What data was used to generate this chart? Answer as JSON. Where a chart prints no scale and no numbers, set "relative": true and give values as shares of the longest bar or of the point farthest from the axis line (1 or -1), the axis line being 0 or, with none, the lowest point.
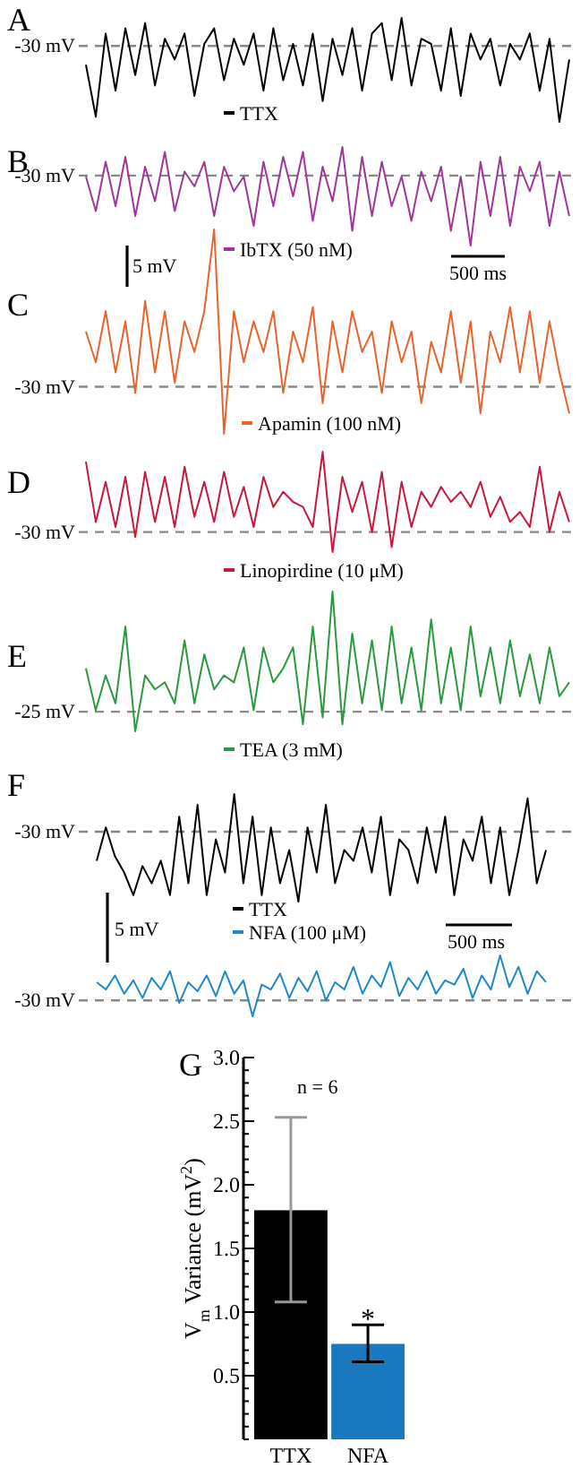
{
  "chart_data": [
    {
      "type": "line",
      "title": "A",
      "relative": true,
      "legend": "bottom",
      "line_style": "solid",
      "categories": [
        null,
        null,
        null,
        null,
        null,
        null,
        null,
        null,
        null,
        null,
        null,
        null,
        null,
        null,
        null,
        null,
        null,
        null,
        null,
        null,
        null,
        null,
        null,
        null,
        null,
        null,
        null,
        null,
        null,
        null,
        null,
        null,
        null,
        null,
        null,
        null,
        null,
        null,
        null,
        null,
        null,
        null,
        null,
        null,
        null,
        null,
        null,
        null,
        null,
        null
      ],
      "series": [
        {
          "name": "TTX",
          "color": "#000000",
          "values": [
            0.55,
            0.05,
            0.85,
            0.3,
            0.9,
            0.45,
            0.95,
            0.35,
            0.8,
            0.6,
            0.85,
            0.25,
            0.75,
            0.9,
            0.4,
            0.8,
            0.55,
            0.85,
            0.3,
            0.9,
            0.4,
            0.75,
            0.35,
            0.85,
            0.2,
            0.8,
            0.45,
            0.9,
            0.3,
            0.85,
            0.95,
            0.4,
            1.0,
            0.35,
            0.8,
            0.75,
            0.3,
            0.9,
            0.25,
            0.85,
            0.6,
            0.8,
            0.35,
            0.75,
            0.6,
            0.85,
            0.3,
            0.8,
            0.0,
            0.6
          ]
        }
      ],
      "ref_lines": [
        {
          "axis": "y",
          "value": 0.73,
          "label": "-30 mV",
          "color": "#888888",
          "line_style": "dashed"
        }
      ]
    },
    {
      "type": "line",
      "title": "B",
      "relative": true,
      "legend": "bottom",
      "line_style": "solid",
      "categories": [
        null,
        null,
        null,
        null,
        null,
        null,
        null,
        null,
        null,
        null,
        null,
        null,
        null,
        null,
        null,
        null,
        null,
        null,
        null,
        null,
        null,
        null,
        null,
        null,
        null,
        null,
        null,
        null,
        null,
        null,
        null,
        null,
        null,
        null,
        null,
        null,
        null,
        null,
        null,
        null,
        null,
        null,
        null,
        null,
        null,
        null,
        null,
        null,
        null,
        null
      ],
      "series": [
        {
          "name": "IbTX (50 nM)",
          "color": "#a0379a",
          "values": [
            0.7,
            0.35,
            0.85,
            0.4,
            0.9,
            0.3,
            0.8,
            0.45,
            0.95,
            0.35,
            0.75,
            0.6,
            0.85,
            0.3,
            0.8,
            0.55,
            0.7,
            0.2,
            0.85,
            0.4,
            0.9,
            0.5,
            0.95,
            0.25,
            0.8,
            0.45,
            1.0,
            0.15,
            0.9,
            0.3,
            0.85,
            0.4,
            0.7,
            0.25,
            0.75,
            0.45,
            0.8,
            0.15,
            0.7,
            0.0,
            0.85,
            0.3,
            0.9,
            0.2,
            0.8,
            0.55,
            0.85,
            0.2,
            0.75,
            0.3
          ]
        }
      ],
      "ref_lines": [
        {
          "axis": "y",
          "value": 0.71,
          "label": "-30 mV",
          "color": "#888888",
          "line_style": "dashed"
        }
      ],
      "annotations": [
        "5 mV",
        "500 ms"
      ]
    },
    {
      "type": "line",
      "title": "C",
      "relative": true,
      "legend": "bottom",
      "line_style": "solid",
      "categories": [
        null,
        null,
        null,
        null,
        null,
        null,
        null,
        null,
        null,
        null,
        null,
        null,
        null,
        null,
        null,
        null,
        null,
        null,
        null,
        null,
        null,
        null,
        null,
        null,
        null,
        null,
        null,
        null,
        null,
        null,
        null,
        null,
        null,
        null,
        null,
        null,
        null,
        null,
        null,
        null,
        null,
        null,
        null,
        null,
        null,
        null,
        null,
        null,
        null,
        null
      ],
      "series": [
        {
          "name": "Apamin (100 nM)",
          "color": "#e8642c",
          "values": [
            0.5,
            0.35,
            0.6,
            0.3,
            0.55,
            0.2,
            0.65,
            0.3,
            0.6,
            0.25,
            0.55,
            0.4,
            0.6,
            1.0,
            0.0,
            0.6,
            0.35,
            0.55,
            0.4,
            0.6,
            0.2,
            0.5,
            0.35,
            0.62,
            0.15,
            0.55,
            0.3,
            0.6,
            0.4,
            0.5,
            0.2,
            0.55,
            0.35,
            0.5,
            0.15,
            0.45,
            0.3,
            0.6,
            0.25,
            0.55,
            0.1,
            0.5,
            0.35,
            0.62,
            0.3,
            0.6,
            0.25,
            0.55,
            0.3,
            0.1
          ]
        }
      ],
      "ref_lines": [
        {
          "axis": "y",
          "value": 0.23,
          "label": "-30 mV",
          "color": "#888888",
          "line_style": "dashed"
        }
      ]
    },
    {
      "type": "line",
      "title": "D",
      "relative": true,
      "legend": "bottom",
      "line_style": "solid",
      "categories": [
        null,
        null,
        null,
        null,
        null,
        null,
        null,
        null,
        null,
        null,
        null,
        null,
        null,
        null,
        null,
        null,
        null,
        null,
        null,
        null,
        null,
        null,
        null,
        null,
        null,
        null,
        null,
        null,
        null,
        null,
        null,
        null,
        null,
        null,
        null,
        null,
        null,
        null,
        null,
        null,
        null,
        null,
        null,
        null,
        null,
        null,
        null,
        null,
        null,
        null
      ],
      "series": [
        {
          "name": "Linopirdine (10 μM)",
          "color": "#c8193c",
          "values": [
            0.9,
            0.3,
            0.7,
            0.25,
            0.75,
            0.15,
            0.8,
            0.3,
            0.75,
            0.25,
            0.85,
            0.35,
            0.7,
            0.3,
            0.8,
            0.35,
            0.65,
            0.25,
            0.75,
            0.45,
            0.6,
            0.5,
            0.45,
            0.25,
            1.0,
            0.0,
            0.75,
            0.4,
            0.7,
            0.2,
            0.8,
            0.05,
            0.7,
            0.25,
            0.6,
            0.45,
            0.65,
            0.5,
            0.6,
            0.45,
            0.7,
            0.35,
            0.55,
            0.3,
            0.4,
            0.25,
            0.85,
            0.2,
            0.6,
            0.3
          ]
        }
      ],
      "ref_lines": [
        {
          "axis": "y",
          "value": 0.2,
          "label": "-30 mV",
          "color": "#888888",
          "line_style": "dashed"
        }
      ]
    },
    {
      "type": "line",
      "title": "E",
      "relative": true,
      "legend": "bottom",
      "line_style": "solid",
      "categories": [
        null,
        null,
        null,
        null,
        null,
        null,
        null,
        null,
        null,
        null,
        null,
        null,
        null,
        null,
        null,
        null,
        null,
        null,
        null,
        null,
        null,
        null,
        null,
        null,
        null,
        null,
        null,
        null,
        null,
        null,
        null,
        null,
        null,
        null,
        null,
        null,
        null,
        null,
        null,
        null,
        null,
        null,
        null,
        null,
        null,
        null,
        null,
        null,
        null,
        null
      ],
      "series": [
        {
          "name": "TEA (3 mM)",
          "color": "#2a9a3f",
          "values": [
            0.45,
            0.15,
            0.4,
            0.2,
            0.75,
            0.0,
            0.4,
            0.3,
            0.35,
            0.2,
            0.65,
            0.2,
            0.55,
            0.3,
            0.4,
            0.35,
            0.6,
            0.15,
            0.6,
            0.35,
            0.45,
            0.6,
            0.05,
            0.75,
            0.1,
            1.0,
            0.05,
            0.7,
            0.2,
            0.65,
            0.15,
            0.75,
            0.2,
            0.6,
            0.15,
            0.8,
            0.2,
            0.6,
            0.15,
            0.75,
            0.25,
            0.6,
            0.2,
            0.65,
            0.25,
            0.55,
            0.2,
            0.6,
            0.25,
            0.35
          ]
        }
      ],
      "ref_lines": [
        {
          "axis": "y",
          "value": 0.14,
          "label": "-25 mV",
          "color": "#888888",
          "line_style": "dashed"
        }
      ]
    },
    {
      "type": "line",
      "title": "F",
      "relative": true,
      "legend": "bottom",
      "line_style": "solid",
      "categories": [
        null,
        null,
        null,
        null,
        null,
        null,
        null,
        null,
        null,
        null,
        null,
        null,
        null,
        null,
        null,
        null,
        null,
        null,
        null,
        null,
        null,
        null,
        null,
        null,
        null,
        null,
        null,
        null,
        null,
        null,
        null,
        null,
        null,
        null,
        null,
        null,
        null,
        null,
        null,
        null,
        null,
        null,
        null,
        null,
        null,
        null,
        null,
        null,
        null,
        null
      ],
      "series": [
        {
          "name": "TTX",
          "color": "#000000",
          "values": [
            0.38,
            0.69,
            0.42,
            0.27,
            0.06,
            0.33,
            0.17,
            0.38,
            0.06,
            0.79,
            0.17,
            0.9,
            0.06,
            0.58,
            0.27,
            1,
            0.17,
            0.79,
            0.06,
            0.69,
            0.17,
            0.48,
            0,
            0.69,
            0.27,
            0.9,
            0.17,
            0.48,
            0.38,
            0.69,
            0.27,
            0.79,
            0.06,
            0.58,
            0.48,
            0.17,
            0.69,
            0.27,
            0.79,
            0.06,
            0.58,
            0.38,
            0.79,
            0.17,
            0.69,
            0.06,
            0.48,
            0.96,
            0.17,
            0.48
          ]
        }
      ],
      "ref_lines": [
        {
          "axis": "y",
          "value": 0.65,
          "label": "-30 mV",
          "color": "#888888",
          "line_style": "dashed"
        }
      ],
      "annotations": [
        "5 mV",
        "500 ms"
      ]
    },
    {
      "type": "line",
      "relative": true,
      "legend": "top",
      "line_style": "solid",
      "categories": [
        null,
        null,
        null,
        null,
        null,
        null,
        null,
        null,
        null,
        null,
        null,
        null,
        null,
        null,
        null,
        null,
        null,
        null,
        null,
        null,
        null,
        null,
        null,
        null,
        null,
        null,
        null,
        null,
        null,
        null,
        null,
        null,
        null,
        null,
        null,
        null,
        null,
        null,
        null,
        null,
        null,
        null,
        null,
        null,
        null,
        null,
        null,
        null,
        null,
        null
      ],
      "series": [
        {
          "name": "NFA (100 μM)",
          "color": "#1e88c8",
          "values": [
            0.56,
            0.44,
            0.67,
            0.37,
            0.59,
            0.3,
            0.63,
            0.44,
            0.74,
            0.22,
            0.56,
            0.41,
            0.67,
            0.33,
            0.74,
            0.37,
            0.59,
            0,
            0.52,
            0.44,
            0.7,
            0.3,
            0.63,
            0.41,
            0.74,
            0.26,
            0.56,
            0.44,
            0.81,
            0.37,
            0.67,
            0.48,
            0.89,
            0.33,
            0.63,
            0.44,
            0.74,
            0.37,
            0.59,
            0.52,
            0.78,
            0.3,
            0.67,
            0.44,
            1,
            0.48,
            0.81,
            0.37,
            0.74,
            0.56
          ]
        }
      ],
      "ref_lines": [
        {
          "axis": "y",
          "value": 0.26,
          "label": "-30 mV",
          "color": "#888888",
          "line_style": "dashed"
        }
      ]
    },
    {
      "type": "bar",
      "title": "G",
      "ylabel": "V$_{m}$ Variance (mV$^{2}$)",
      "categories": [
        "TTX",
        "NFA"
      ],
      "values": [
        1.8,
        0.75
      ],
      "colors": [
        "#000000",
        "#1a78be"
      ],
      "errors": [
        [
          1.08,
          2.53
        ],
        [
          0.61,
          0.9
        ]
      ],
      "ylim": [
        0,
        3
      ],
      "yticks": [
        {
          "value": 0,
          "label": null
        },
        {
          "value": 0.1,
          "label": null
        },
        {
          "value": 0.2,
          "label": null
        },
        {
          "value": 0.3,
          "label": null
        },
        {
          "value": 0.4,
          "label": null
        },
        0.5,
        {
          "value": 0.6,
          "label": null
        },
        {
          "value": 0.7,
          "label": null
        },
        {
          "value": 0.8,
          "label": null
        },
        {
          "value": 0.9,
          "label": null
        },
        {
          "value": 1,
          "label": "1.0"
        },
        {
          "value": 1.1,
          "label": null
        },
        {
          "value": 1.2,
          "label": null
        },
        {
          "value": 1.3,
          "label": null
        },
        {
          "value": 1.4,
          "label": null
        },
        1.5,
        {
          "value": 1.6,
          "label": null
        },
        {
          "value": 1.7,
          "label": null
        },
        {
          "value": 1.8,
          "label": null
        },
        {
          "value": 1.9,
          "label": null
        },
        {
          "value": 2,
          "label": "2.0"
        },
        {
          "value": 2.1,
          "label": null
        },
        {
          "value": 2.2,
          "label": null
        },
        {
          "value": 2.3,
          "label": null
        },
        {
          "value": 2.4,
          "label": null
        },
        2.5,
        {
          "value": 2.6,
          "label": null
        },
        {
          "value": 2.7,
          "label": null
        },
        {
          "value": 2.8,
          "label": null
        },
        {
          "value": 2.9,
          "label": null
        },
        {
          "value": 3,
          "label": "3.0"
        }
      ],
      "annotations": [
        "n = 6",
        {
          "text": "*",
          "x": "NFA",
          "y": 0.9
        }
      ]
    }
  ]
}
